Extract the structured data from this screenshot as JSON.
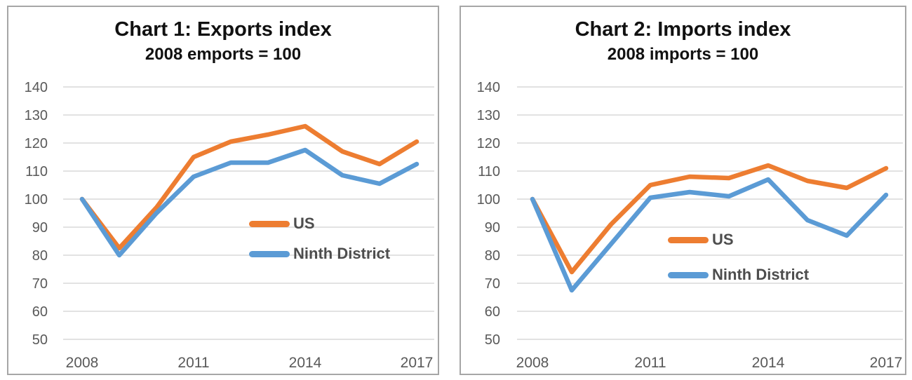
{
  "chart_data": [
    {
      "type": "line",
      "title": "Chart 1: Exports index",
      "subtitle": "2008 emports = 100",
      "xlabel": "",
      "ylabel": "",
      "years": [
        2008,
        2009,
        2010,
        2011,
        2012,
        2013,
        2014,
        2015,
        2016,
        2017
      ],
      "x_tick_labels": [
        "2008",
        "2011",
        "2014",
        "2017"
      ],
      "y_axis": {
        "min": 50,
        "max": 140,
        "step": 10
      },
      "grid": true,
      "legend_position": "middle-right-inside",
      "series": [
        {
          "name": "US",
          "color": "#ED7D31",
          "values": [
            100,
            82.5,
            97,
            115,
            120.5,
            123,
            126,
            117,
            112.5,
            120.5
          ]
        },
        {
          "name": "Ninth District",
          "color": "#5B9BD5",
          "values": [
            100,
            80,
            95,
            108,
            113,
            113,
            117.5,
            108.5,
            105.5,
            112.5
          ]
        }
      ]
    },
    {
      "type": "line",
      "title": "Chart 2: Imports index",
      "subtitle": "2008 imports = 100",
      "xlabel": "",
      "ylabel": "",
      "years": [
        2008,
        2009,
        2010,
        2011,
        2012,
        2013,
        2014,
        2015,
        2016,
        2017
      ],
      "x_tick_labels": [
        "2008",
        "2011",
        "2014",
        "2017"
      ],
      "y_axis": {
        "min": 50,
        "max": 140,
        "step": 10
      },
      "grid": true,
      "legend_position": "middle-right-inside",
      "series": [
        {
          "name": "US",
          "color": "#ED7D31",
          "values": [
            100,
            74,
            91,
            105,
            108,
            107.5,
            112,
            106.5,
            104,
            111
          ]
        },
        {
          "name": "Ninth District",
          "color": "#5B9BD5",
          "values": [
            100,
            67.5,
            84,
            100.5,
            102.5,
            101,
            107,
            92.5,
            87,
            101.5
          ]
        }
      ]
    }
  ],
  "style": {
    "gridline_color": "#d9d9d9",
    "axis_label_color": "#595959",
    "panel_border_color": "#a6a6a6",
    "title_color": "#111111",
    "legend_text_color": "#4d4d4d"
  }
}
